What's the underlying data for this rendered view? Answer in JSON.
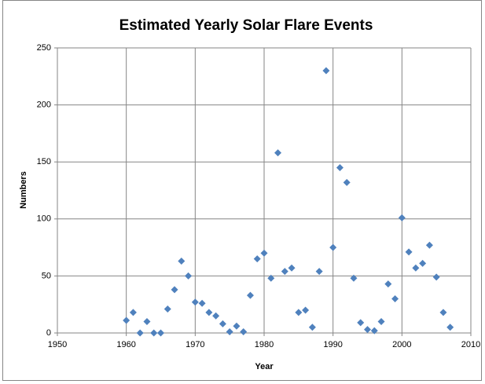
{
  "chart_data": {
    "type": "scatter",
    "title": "Estimated Yearly Solar Flare Events",
    "xlabel": "Year",
    "ylabel": "Numbers",
    "x": [
      1960,
      1961,
      1962,
      1963,
      1964,
      1965,
      1966,
      1967,
      1968,
      1969,
      1970,
      1971,
      1972,
      1973,
      1974,
      1975,
      1976,
      1977,
      1978,
      1979,
      1980,
      1981,
      1982,
      1983,
      1984,
      1985,
      1986,
      1987,
      1988,
      1989,
      1990,
      1991,
      1992,
      1993,
      1994,
      1995,
      1996,
      1997,
      1998,
      1999,
      2000,
      2001,
      2002,
      2003,
      2004,
      2005,
      2006,
      2007
    ],
    "values": [
      11,
      18,
      0,
      10,
      0,
      0,
      21,
      38,
      63,
      50,
      27,
      26,
      18,
      15,
      8,
      1,
      6,
      1,
      33,
      65,
      70,
      48,
      158,
      54,
      57,
      18,
      20,
      5,
      54,
      230,
      75,
      145,
      132,
      48,
      9,
      3,
      2,
      10,
      43,
      30,
      101,
      71,
      57,
      61,
      77,
      49,
      18,
      5
    ],
    "color": "#4f81bd",
    "xlim": [
      1950,
      2010
    ],
    "xticks": [
      1950,
      1960,
      1970,
      1980,
      1990,
      2000,
      2010
    ],
    "ylim": [
      0,
      250
    ],
    "yticks": [
      0,
      50,
      100,
      150,
      200,
      250
    ],
    "grid": true
  }
}
